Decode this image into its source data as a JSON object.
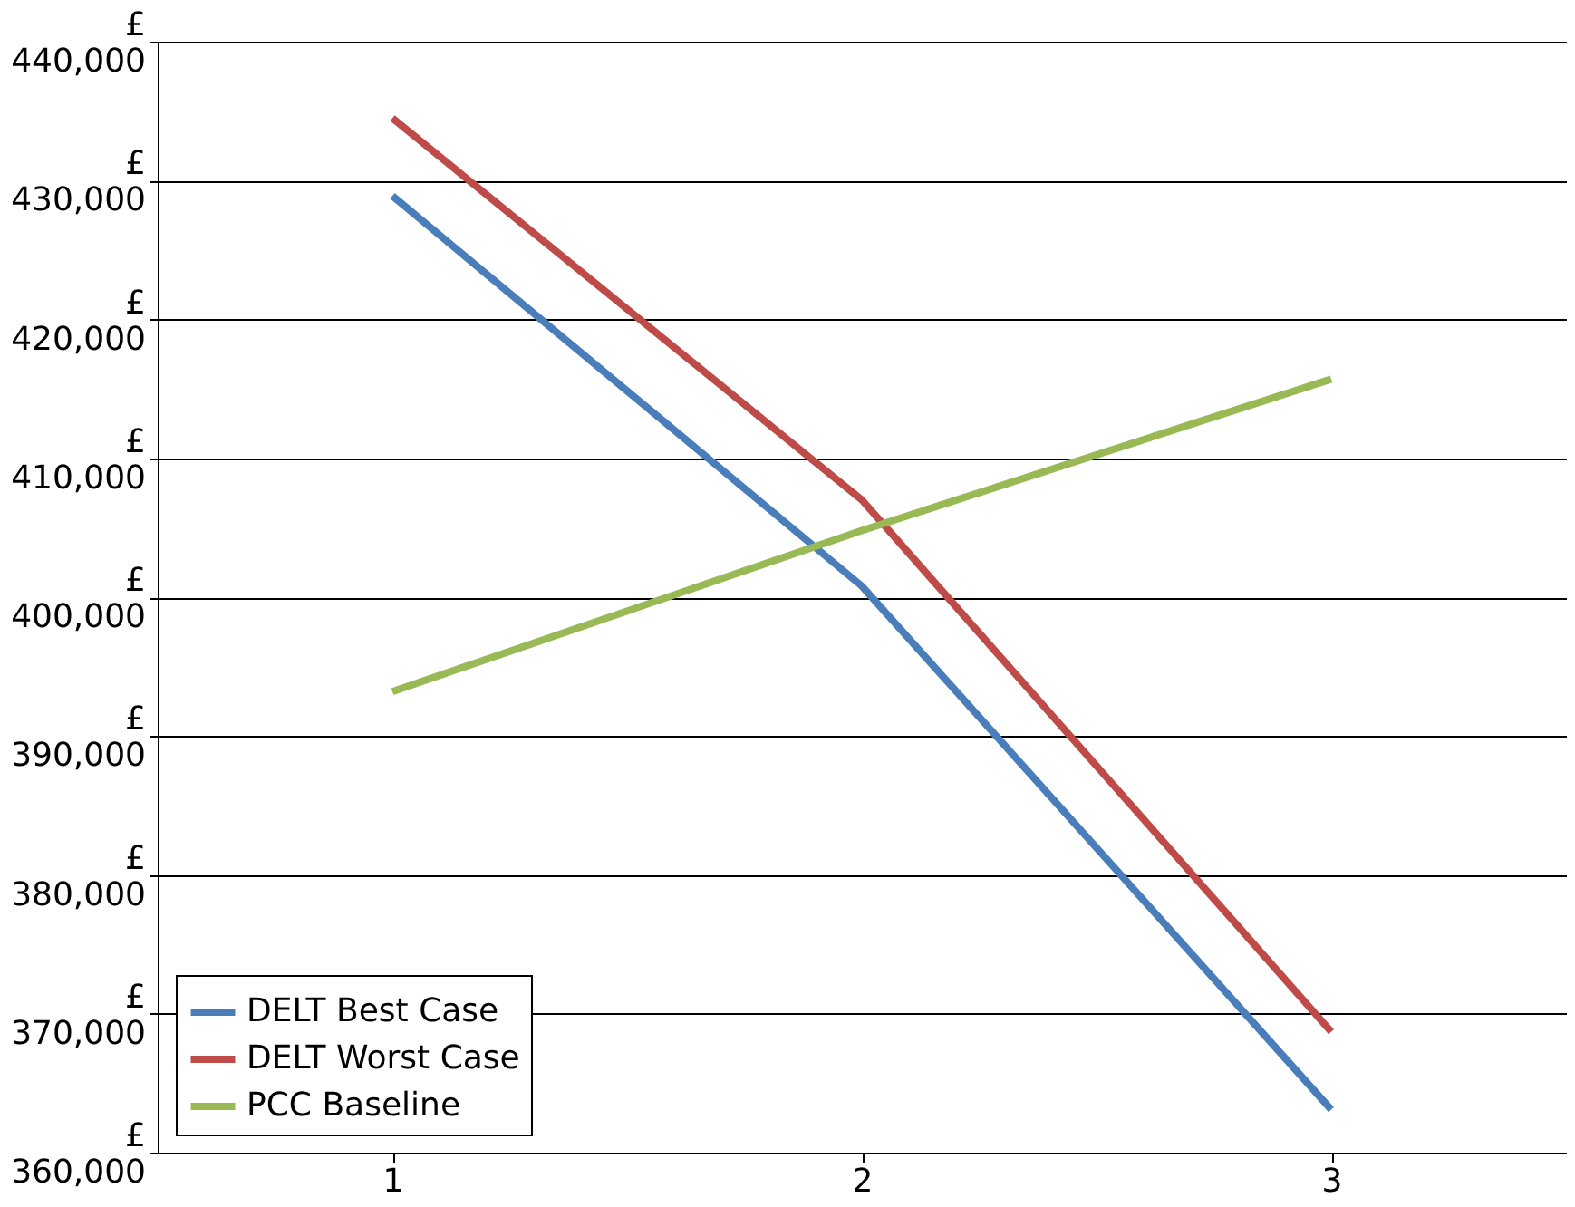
{
  "chart_data": {
    "type": "line",
    "categories": [
      "1",
      "2",
      "3"
    ],
    "series": [
      {
        "name": "DELT Best Case",
        "color": "#4a7ebb",
        "values": [
          428900,
          400800,
          363100
        ]
      },
      {
        "name": "DELT Worst Case",
        "color": "#be4b48",
        "values": [
          434500,
          407000,
          368700
        ]
      },
      {
        "name": "PCC Baseline",
        "color": "#98b954",
        "values": [
          393200,
          404800,
          415700
        ]
      }
    ],
    "ylim": [
      360000,
      440000
    ],
    "yticks": [
      {
        "value": 360000,
        "label": "£\n360,000"
      },
      {
        "value": 370000,
        "label": "£\n370,000"
      },
      {
        "value": 380000,
        "label": "£\n380,000"
      },
      {
        "value": 390000,
        "label": "£\n390,000"
      },
      {
        "value": 400000,
        "label": "£\n400,000"
      },
      {
        "value": 410000,
        "label": "£\n410,000"
      },
      {
        "value": 420000,
        "label": "£\n420,000"
      },
      {
        "value": 430000,
        "label": "£\n430,000"
      },
      {
        "value": 440000,
        "label": "£\n440,000"
      }
    ],
    "grid": "y",
    "legend": "bottom left"
  }
}
